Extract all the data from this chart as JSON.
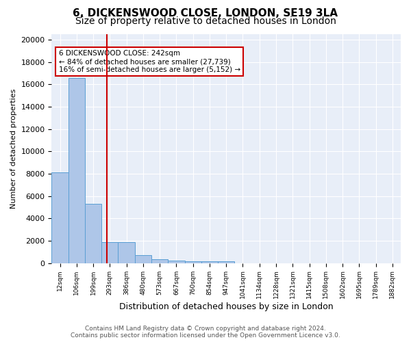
{
  "title": "6, DICKENSWOOD CLOSE, LONDON, SE19 3LA",
  "subtitle": "Size of property relative to detached houses in London",
  "xlabel": "Distribution of detached houses by size in London",
  "ylabel": "Number of detached properties",
  "bins": [
    "12sqm",
    "106sqm",
    "199sqm",
    "293sqm",
    "386sqm",
    "480sqm",
    "573sqm",
    "667sqm",
    "760sqm",
    "854sqm",
    "947sqm",
    "1041sqm",
    "1134sqm",
    "1228sqm",
    "1321sqm",
    "1415sqm",
    "1508sqm",
    "1602sqm",
    "1695sqm",
    "1789sqm",
    "1882sqm"
  ],
  "values": [
    8100,
    16600,
    5300,
    1850,
    1850,
    700,
    320,
    220,
    180,
    170,
    130,
    0,
    0,
    0,
    0,
    0,
    0,
    0,
    0,
    0,
    0
  ],
  "bar_color": "#aec6e8",
  "bar_edge_color": "#5a9fd4",
  "vline_x": 2.84,
  "vline_color": "#cc0000",
  "annotation_text": "6 DICKENSWOOD CLOSE: 242sqm\n← 84% of detached houses are smaller (27,739)\n16% of semi-detached houses are larger (5,152) →",
  "annotation_box_color": "#ffffff",
  "annotation_box_edge": "#cc0000",
  "ylim": [
    0,
    20500
  ],
  "yticks": [
    0,
    2000,
    4000,
    6000,
    8000,
    10000,
    12000,
    14000,
    16000,
    18000,
    20000
  ],
  "background_color": "#e8eef8",
  "footer": "Contains HM Land Registry data © Crown copyright and database right 2024.\nContains public sector information licensed under the Open Government Licence v3.0.",
  "title_fontsize": 11,
  "subtitle_fontsize": 10
}
